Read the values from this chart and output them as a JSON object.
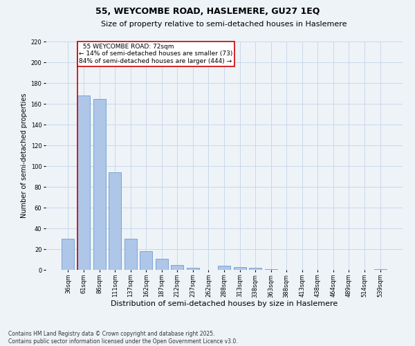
{
  "title": "55, WEYCOMBE ROAD, HASLEMERE, GU27 1EQ",
  "subtitle": "Size of property relative to semi-detached houses in Haslemere",
  "xlabel": "Distribution of semi-detached houses by size in Haslemere",
  "ylabel": "Number of semi-detached properties",
  "categories": [
    "36sqm",
    "61sqm",
    "86sqm",
    "111sqm",
    "137sqm",
    "162sqm",
    "187sqm",
    "212sqm",
    "237sqm",
    "262sqm",
    "288sqm",
    "313sqm",
    "338sqm",
    "363sqm",
    "388sqm",
    "413sqm",
    "438sqm",
    "464sqm",
    "489sqm",
    "514sqm",
    "539sqm"
  ],
  "values": [
    30,
    168,
    165,
    94,
    30,
    18,
    11,
    5,
    2,
    0,
    4,
    3,
    2,
    1,
    0,
    0,
    0,
    0,
    0,
    0,
    1
  ],
  "bar_color": "#aec6e8",
  "bar_edge_color": "#5a8fc4",
  "grid_color": "#c8d8e8",
  "background_color": "#eef3f8",
  "property_label": "55 WEYCOMBE ROAD: 72sqm",
  "pct_smaller": 14,
  "pct_larger": 84,
  "n_smaller": 73,
  "n_larger": 444,
  "annotation_box_color": "#ffffff",
  "annotation_box_edge": "#cc0000",
  "vline_color": "#cc0000",
  "vline_bar_index": 1,
  "ylim": [
    0,
    220
  ],
  "yticks": [
    0,
    20,
    40,
    60,
    80,
    100,
    120,
    140,
    160,
    180,
    200,
    220
  ],
  "footer_line1": "Contains HM Land Registry data © Crown copyright and database right 2025.",
  "footer_line2": "Contains public sector information licensed under the Open Government Licence v3.0.",
  "title_fontsize": 9,
  "subtitle_fontsize": 8,
  "xlabel_fontsize": 8,
  "ylabel_fontsize": 7,
  "tick_fontsize": 6,
  "annotation_fontsize": 6.5,
  "footer_fontsize": 5.5
}
